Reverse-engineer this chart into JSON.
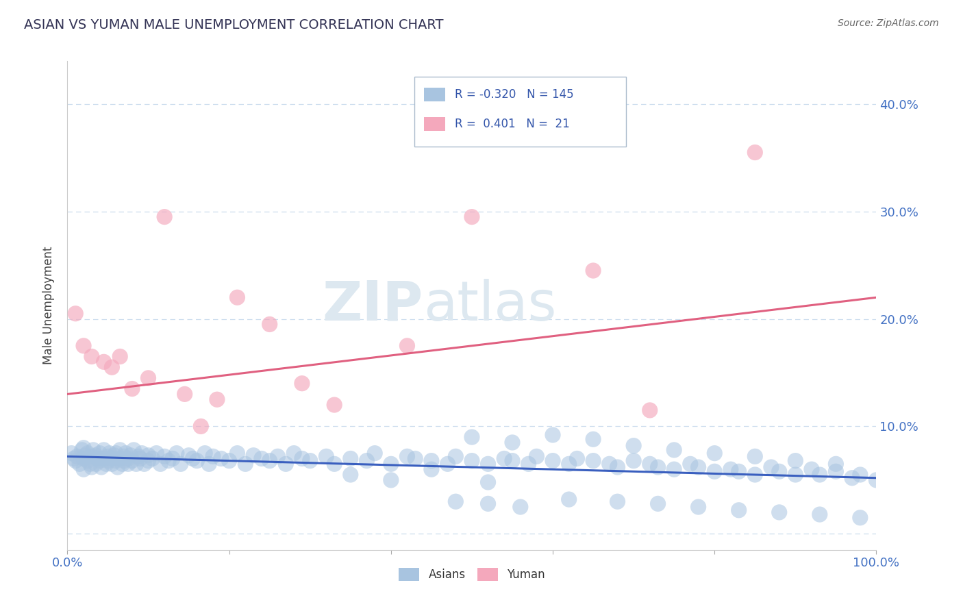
{
  "title": "ASIAN VS YUMAN MALE UNEMPLOYMENT CORRELATION CHART",
  "source": "Source: ZipAtlas.com",
  "ylabel": "Male Unemployment",
  "xlim": [
    0.0,
    1.0
  ],
  "ylim": [
    -0.015,
    0.44
  ],
  "asian_R": -0.32,
  "asian_N": 145,
  "yuman_R": 0.401,
  "yuman_N": 21,
  "asian_color": "#a8c4e0",
  "yuman_color": "#f4a8bc",
  "asian_line_color": "#3a5fbf",
  "yuman_line_color": "#e06080",
  "title_color": "#333355",
  "axis_color": "#4472c4",
  "source_color": "#666666",
  "legend_color": "#3355aa",
  "background_color": "#ffffff",
  "grid_color": "#ccddee",
  "watermark_color": "#dde8f0",
  "asian_x": [
    0.005,
    0.008,
    0.01,
    0.012,
    0.015,
    0.018,
    0.02,
    0.02,
    0.02,
    0.022,
    0.025,
    0.025,
    0.028,
    0.03,
    0.03,
    0.032,
    0.035,
    0.035,
    0.038,
    0.04,
    0.04,
    0.042,
    0.045,
    0.045,
    0.048,
    0.05,
    0.05,
    0.052,
    0.055,
    0.055,
    0.058,
    0.06,
    0.06,
    0.062,
    0.065,
    0.065,
    0.068,
    0.07,
    0.07,
    0.072,
    0.075,
    0.075,
    0.078,
    0.08,
    0.082,
    0.085,
    0.088,
    0.09,
    0.092,
    0.095,
    0.1,
    0.1,
    0.105,
    0.11,
    0.115,
    0.12,
    0.125,
    0.13,
    0.135,
    0.14,
    0.15,
    0.155,
    0.16,
    0.17,
    0.175,
    0.18,
    0.19,
    0.2,
    0.21,
    0.22,
    0.23,
    0.24,
    0.25,
    0.26,
    0.27,
    0.28,
    0.29,
    0.3,
    0.32,
    0.33,
    0.35,
    0.37,
    0.38,
    0.4,
    0.42,
    0.43,
    0.45,
    0.47,
    0.48,
    0.5,
    0.52,
    0.54,
    0.55,
    0.57,
    0.58,
    0.6,
    0.62,
    0.63,
    0.65,
    0.67,
    0.68,
    0.7,
    0.72,
    0.73,
    0.75,
    0.77,
    0.78,
    0.8,
    0.82,
    0.83,
    0.85,
    0.87,
    0.88,
    0.9,
    0.92,
    0.93,
    0.95,
    0.97,
    0.98,
    1.0,
    0.5,
    0.55,
    0.6,
    0.65,
    0.7,
    0.75,
    0.8,
    0.85,
    0.9,
    0.95,
    0.48,
    0.52,
    0.56,
    0.62,
    0.68,
    0.73,
    0.78,
    0.83,
    0.88,
    0.93,
    0.98,
    0.35,
    0.4,
    0.45,
    0.52
  ],
  "asian_y": [
    0.075,
    0.07,
    0.068,
    0.072,
    0.065,
    0.078,
    0.07,
    0.08,
    0.06,
    0.073,
    0.068,
    0.075,
    0.065,
    0.072,
    0.062,
    0.078,
    0.065,
    0.073,
    0.07,
    0.068,
    0.075,
    0.062,
    0.07,
    0.078,
    0.065,
    0.072,
    0.068,
    0.075,
    0.065,
    0.07,
    0.073,
    0.068,
    0.075,
    0.062,
    0.07,
    0.078,
    0.065,
    0.072,
    0.068,
    0.075,
    0.065,
    0.07,
    0.073,
    0.068,
    0.078,
    0.065,
    0.072,
    0.07,
    0.075,
    0.065,
    0.073,
    0.068,
    0.07,
    0.075,
    0.065,
    0.072,
    0.068,
    0.07,
    0.075,
    0.065,
    0.073,
    0.07,
    0.068,
    0.075,
    0.065,
    0.072,
    0.07,
    0.068,
    0.075,
    0.065,
    0.073,
    0.07,
    0.068,
    0.072,
    0.065,
    0.075,
    0.07,
    0.068,
    0.072,
    0.065,
    0.07,
    0.068,
    0.075,
    0.065,
    0.072,
    0.07,
    0.068,
    0.065,
    0.072,
    0.068,
    0.065,
    0.07,
    0.068,
    0.065,
    0.072,
    0.068,
    0.065,
    0.07,
    0.068,
    0.065,
    0.062,
    0.068,
    0.065,
    0.062,
    0.06,
    0.065,
    0.062,
    0.058,
    0.06,
    0.058,
    0.055,
    0.062,
    0.058,
    0.055,
    0.06,
    0.055,
    0.058,
    0.052,
    0.055,
    0.05,
    0.09,
    0.085,
    0.092,
    0.088,
    0.082,
    0.078,
    0.075,
    0.072,
    0.068,
    0.065,
    0.03,
    0.028,
    0.025,
    0.032,
    0.03,
    0.028,
    0.025,
    0.022,
    0.02,
    0.018,
    0.015,
    0.055,
    0.05,
    0.06,
    0.048
  ],
  "yuman_x": [
    0.01,
    0.02,
    0.03,
    0.045,
    0.055,
    0.065,
    0.08,
    0.1,
    0.12,
    0.145,
    0.165,
    0.185,
    0.21,
    0.25,
    0.29,
    0.33,
    0.42,
    0.5,
    0.65,
    0.72,
    0.85
  ],
  "yuman_y": [
    0.205,
    0.175,
    0.165,
    0.16,
    0.155,
    0.165,
    0.135,
    0.145,
    0.295,
    0.13,
    0.1,
    0.125,
    0.22,
    0.195,
    0.14,
    0.12,
    0.175,
    0.295,
    0.245,
    0.115,
    0.355
  ],
  "asian_trend_x0": 0.0,
  "asian_trend_y0": 0.072,
  "asian_trend_x1": 1.0,
  "asian_trend_y1": 0.052,
  "yuman_trend_x0": 0.0,
  "yuman_trend_y0": 0.13,
  "yuman_trend_x1": 1.0,
  "yuman_trend_y1": 0.22
}
